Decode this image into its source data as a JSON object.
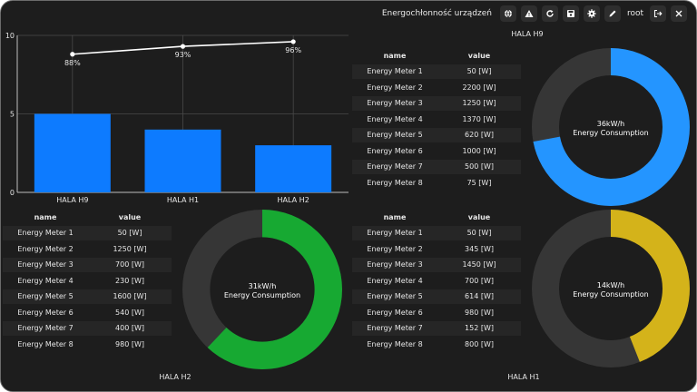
{
  "header": {
    "app_title": "Energochłonność urządzeń",
    "user": "root"
  },
  "colors": {
    "background": "#1d1d1d",
    "bar_blue": "#0d7bff",
    "donut_blue": "#2495ff",
    "donut_green": "#17a932",
    "donut_yellow": "#d4b31a",
    "donut_track": "#363636"
  },
  "toolbar_icons": [
    "globe-icon",
    "alert-icon",
    "refresh-icon",
    "save-icon",
    "gear-icon",
    "pencil-icon",
    "logout-icon",
    "close-icon"
  ],
  "chart_data": {
    "type": "bar",
    "categories": [
      "HALA H9",
      "HALA H1",
      "HALA H2"
    ],
    "values": [
      5,
      4,
      3
    ],
    "ylim": [
      0,
      10
    ],
    "yticks": [
      "0",
      "5",
      "10"
    ],
    "line_series": {
      "values": [
        8.8,
        9.3,
        9.6
      ],
      "labels": [
        "88%",
        "93%",
        "96%"
      ]
    },
    "grid": true
  },
  "table_header": {
    "name": "name",
    "value": "value"
  },
  "halls": {
    "h9": {
      "label": "HALA H9",
      "consumption": "36kW/h",
      "consumption_label": "Energy Consumption",
      "fill_fraction": 0.72,
      "rows": [
        {
          "name": "Energy Meter 1",
          "value": "50 [W]"
        },
        {
          "name": "Energy Meter 2",
          "value": "2200 [W]"
        },
        {
          "name": "Energy Meter 3",
          "value": "1250 [W]"
        },
        {
          "name": "Energy Meter 4",
          "value": "1370 [W]"
        },
        {
          "name": "Energy Meter 5",
          "value": "620 [W]"
        },
        {
          "name": "Energy Meter 6",
          "value": "1000 [W]"
        },
        {
          "name": "Energy Meter 7",
          "value": "500 [W]"
        },
        {
          "name": "Energy Meter 8",
          "value": "75 [W]"
        }
      ]
    },
    "h2": {
      "label": "HALA H2",
      "consumption": "31kW/h",
      "consumption_label": "Energy Consumption",
      "fill_fraction": 0.62,
      "rows": [
        {
          "name": "Energy Meter 1",
          "value": "50 [W]"
        },
        {
          "name": "Energy Meter 2",
          "value": "1250 [W]"
        },
        {
          "name": "Energy Meter 3",
          "value": "700 [W]"
        },
        {
          "name": "Energy Meter 4",
          "value": "230 [W]"
        },
        {
          "name": "Energy Meter 5",
          "value": "1600 [W]"
        },
        {
          "name": "Energy Meter 6",
          "value": "540 [W]"
        },
        {
          "name": "Energy Meter 7",
          "value": "400 [W]"
        },
        {
          "name": "Energy Meter 8",
          "value": "980 [W]"
        }
      ]
    },
    "h1": {
      "label": "HALA H1",
      "consumption": "14kW/h",
      "consumption_label": "Energy Consumption",
      "fill_fraction": 0.44,
      "rows": [
        {
          "name": "Energy Meter 1",
          "value": "50 [W]"
        },
        {
          "name": "Energy Meter 2",
          "value": "345 [W]"
        },
        {
          "name": "Energy Meter 3",
          "value": "1450 [W]"
        },
        {
          "name": "Energy Meter 4",
          "value": "700 [W]"
        },
        {
          "name": "Energy Meter 5",
          "value": "614 [W]"
        },
        {
          "name": "Energy Meter 6",
          "value": "980 [W]"
        },
        {
          "name": "Energy Meter 7",
          "value": "152 [W]"
        },
        {
          "name": "Energy Meter 8",
          "value": "800 [W]"
        }
      ]
    }
  }
}
